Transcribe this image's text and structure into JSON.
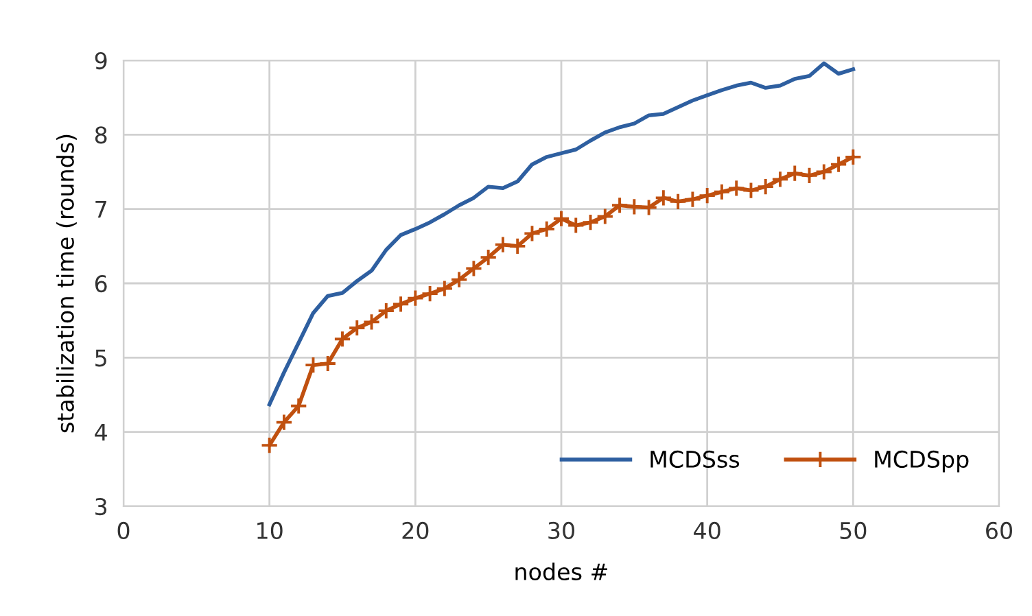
{
  "chart_data": {
    "type": "line",
    "xlabel": "nodes #",
    "ylabel": "stabilization time (rounds)",
    "x": [
      10,
      11,
      12,
      13,
      14,
      15,
      16,
      17,
      18,
      19,
      20,
      21,
      22,
      23,
      24,
      25,
      26,
      27,
      28,
      29,
      30,
      31,
      32,
      33,
      34,
      35,
      36,
      37,
      38,
      39,
      40,
      41,
      42,
      43,
      44,
      45,
      46,
      47,
      48,
      49,
      50
    ],
    "series": [
      {
        "name": "MCDSss",
        "color": "#2e5fa0",
        "marker": "none",
        "values": [
          4.37,
          4.8,
          5.2,
          5.6,
          5.83,
          5.87,
          6.03,
          6.17,
          6.45,
          6.65,
          6.73,
          6.82,
          6.93,
          7.05,
          7.15,
          7.3,
          7.28,
          7.37,
          7.6,
          7.7,
          7.75,
          7.8,
          7.92,
          8.03,
          8.1,
          8.15,
          8.26,
          8.28,
          8.37,
          8.46,
          8.53,
          8.6,
          8.66,
          8.7,
          8.63,
          8.66,
          8.75,
          8.79,
          8.96,
          8.82,
          8.88
        ]
      },
      {
        "name": "MCDSpp",
        "color": "#c0500f",
        "marker": "cross",
        "values": [
          3.82,
          4.13,
          4.35,
          4.9,
          4.92,
          5.25,
          5.4,
          5.48,
          5.63,
          5.72,
          5.8,
          5.86,
          5.93,
          6.05,
          6.2,
          6.35,
          6.52,
          6.5,
          6.67,
          6.73,
          6.87,
          6.78,
          6.82,
          6.9,
          7.05,
          7.03,
          7.02,
          7.15,
          7.1,
          7.13,
          7.18,
          7.23,
          7.28,
          7.25,
          7.3,
          7.4,
          7.48,
          7.45,
          7.5,
          7.6,
          7.7
        ]
      }
    ],
    "xlim": [
      0,
      60
    ],
    "xticks": [
      0,
      10,
      20,
      30,
      40,
      50,
      60
    ],
    "ylim": [
      3,
      9
    ],
    "yticks": [
      3,
      4,
      5,
      6,
      7,
      8,
      9
    ],
    "grid": true,
    "legend": "bottom right"
  }
}
